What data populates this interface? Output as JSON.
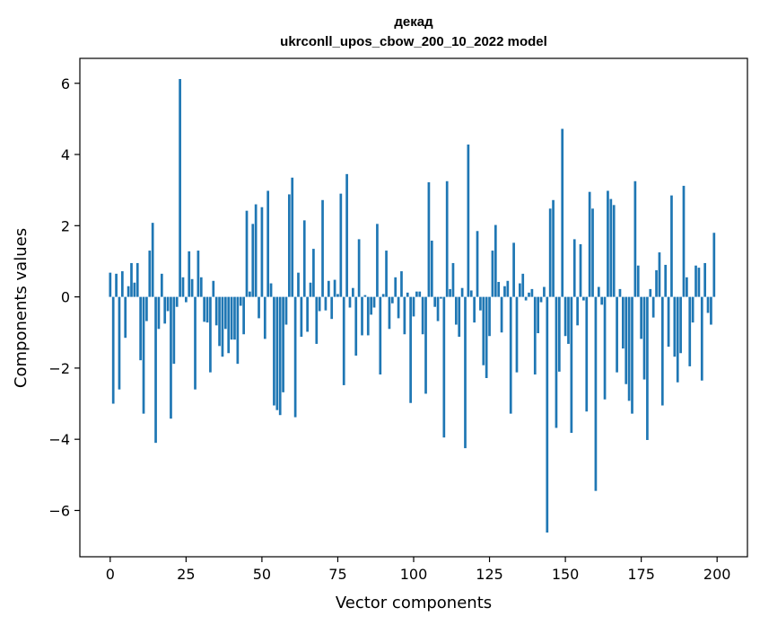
{
  "chart_data": {
    "type": "bar",
    "title_lines": [
      "декад",
      "ukrconll_upos_cbow_200_10_2022 model"
    ],
    "xlabel": "Vector components",
    "ylabel": "Components values",
    "xlim": [
      -10,
      210
    ],
    "ylim": [
      -7.3,
      6.7
    ],
    "xticks": [
      0,
      25,
      50,
      75,
      100,
      125,
      150,
      175,
      200
    ],
    "yticks": [
      -6,
      -4,
      -2,
      0,
      2,
      4,
      6
    ],
    "ytick_labels": [
      "−6",
      "−4",
      "−2",
      "0",
      "2",
      "4",
      "6"
    ],
    "bar_color": "#1f77b4",
    "grid": false,
    "values": [
      0.68,
      -3.0,
      0.65,
      -2.6,
      0.72,
      -1.15,
      0.3,
      0.95,
      0.4,
      0.95,
      -1.78,
      -3.28,
      -0.68,
      1.3,
      2.08,
      -4.1,
      -0.9,
      0.65,
      -0.75,
      -0.4,
      -3.42,
      -1.88,
      -0.28,
      6.12,
      0.55,
      -0.15,
      1.28,
      0.5,
      -2.6,
      1.3,
      0.55,
      -0.7,
      -0.72,
      -2.12,
      0.45,
      -0.8,
      -1.38,
      -1.68,
      -0.9,
      -1.58,
      -1.2,
      -1.2,
      -1.88,
      -0.25,
      -1.05,
      2.42,
      0.15,
      2.05,
      2.6,
      -0.6,
      2.52,
      -1.18,
      2.98,
      0.38,
      -3.05,
      -3.18,
      -3.32,
      -2.68,
      -0.78,
      2.88,
      3.35,
      -3.38,
      0.68,
      -1.12,
      2.15,
      -0.98,
      0.4,
      1.35,
      -1.32,
      -0.4,
      2.72,
      -0.38,
      0.45,
      -0.62,
      0.48,
      0.08,
      2.9,
      -2.48,
      3.45,
      -0.3,
      0.25,
      -1.65,
      1.62,
      -1.08,
      0.05,
      -1.08,
      -0.5,
      -0.3,
      2.05,
      -2.18,
      0.08,
      1.3,
      -0.9,
      -0.18,
      0.55,
      -0.6,
      0.72,
      -1.05,
      0.12,
      -2.98,
      -0.55,
      0.15,
      0.15,
      -1.05,
      -2.72,
      3.22,
      1.58,
      -0.28,
      -0.68,
      -0.05,
      -3.95,
      3.25,
      0.22,
      0.95,
      -0.78,
      -1.12,
      0.25,
      -4.25,
      4.28,
      0.18,
      -0.72,
      1.85,
      -0.38,
      -1.92,
      -2.28,
      -1.1,
      1.3,
      2.02,
      0.42,
      -1.0,
      0.3,
      0.45,
      -3.28,
      1.52,
      -2.12,
      0.38,
      0.65,
      -0.1,
      0.12,
      0.22,
      -2.18,
      -1.02,
      -0.15,
      0.28,
      -6.62,
      2.48,
      2.72,
      -3.68,
      -2.1,
      4.72,
      -1.1,
      -1.32,
      -3.82,
      1.62,
      -0.8,
      1.48,
      -0.1,
      -3.22,
      2.95,
      2.48,
      -5.45,
      0.28,
      -0.22,
      -2.88,
      2.98,
      2.75,
      2.58,
      -2.12,
      0.22,
      -1.45,
      -2.45,
      -2.92,
      -3.28,
      3.25,
      0.88,
      -1.18,
      -2.32,
      -4.02,
      0.22,
      -0.58,
      0.75,
      1.25,
      -3.05,
      0.9,
      -1.4,
      2.85,
      -1.68,
      -2.4,
      -1.58,
      3.12,
      0.55,
      -1.95,
      -0.72,
      0.88,
      0.82,
      -2.35,
      0.95,
      -0.45,
      -0.78,
      1.8
    ]
  }
}
